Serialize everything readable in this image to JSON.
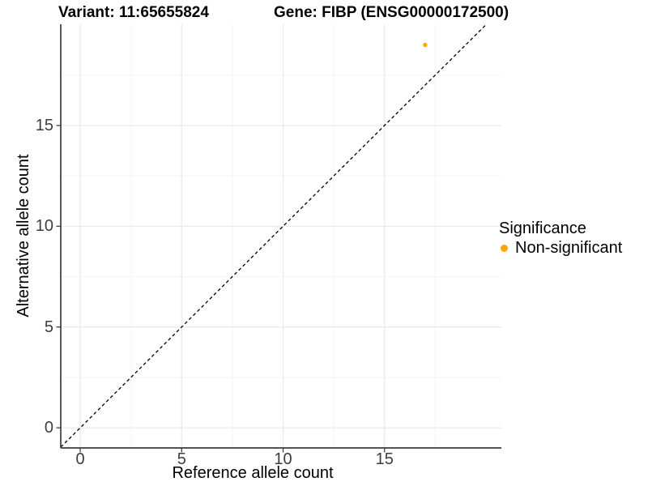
{
  "header": {
    "variant_title": "Variant: 11:65655824",
    "gene_title": "Gene: FIBP (ENSG00000172500)"
  },
  "legend": {
    "title": "Significance",
    "items": [
      {
        "label": "Non-significant",
        "color": "#FFA500"
      }
    ]
  },
  "colors": {
    "point": "#FFA500",
    "grid_major": "#E8E8E8",
    "grid_minor": "#F4F4F4",
    "axis_line": "#3c3c3c",
    "tick_mark": "#333333",
    "reference_line": "#000000",
    "background": "#FFFFFF"
  },
  "chart_data": {
    "type": "scatter",
    "title_left": "Variant: 11:65655824",
    "title_right": "Gene: FIBP (ENSG00000172500)",
    "xlabel": "Reference allele count",
    "ylabel": "Alternative allele count",
    "series": [
      {
        "name": "Non-significant",
        "color": "#FFA500",
        "points": [
          {
            "x": 17,
            "y": 19
          }
        ]
      }
    ],
    "reference_line": {
      "type": "identity",
      "slope": 1,
      "intercept": 0,
      "line_style": "dashed"
    },
    "x_ticks": [
      0,
      5,
      10,
      15
    ],
    "y_ticks": [
      0,
      5,
      10,
      15
    ],
    "x_minor_gridlines": [
      2.5,
      7.5,
      12.5,
      17.5
    ],
    "y_minor_gridlines": [
      2.5,
      7.5,
      12.5,
      17.5
    ],
    "xlim": [
      -0.96,
      20.76
    ],
    "ylim": [
      -1.0,
      20.02
    ],
    "grid": "major+minor",
    "legend_position": "right",
    "legend_title": "Significance"
  }
}
